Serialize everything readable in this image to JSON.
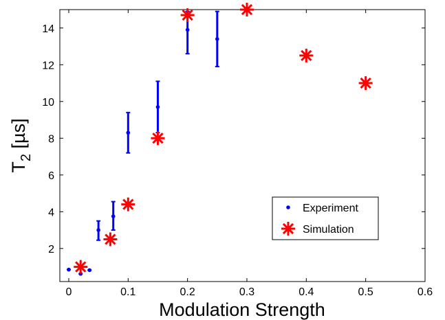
{
  "chart_data": {
    "type": "scatter",
    "title": "",
    "xlabel": "Modulation Strength",
    "ylabel_main": "T",
    "ylabel_sub": "2",
    "ylabel_unit": " [µs]",
    "xlim": [
      -0.015,
      0.6
    ],
    "ylim": [
      0.2,
      15
    ],
    "xticks": [
      0,
      0.1,
      0.2,
      0.3,
      0.4,
      0.5,
      0.6
    ],
    "xtick_labels": [
      "0",
      "0.1",
      "0.2",
      "0.3",
      "0.4",
      "0.5",
      "0.6"
    ],
    "yticks": [
      2,
      4,
      6,
      8,
      10,
      12,
      14
    ],
    "ytick_labels": [
      "2",
      "4",
      "6",
      "8",
      "10",
      "12",
      "14"
    ],
    "grid": false,
    "legend_position": "lower-right",
    "series": [
      {
        "name": "Experiment",
        "marker": "dot",
        "color": "#0000ff",
        "points": [
          {
            "x": 0.0,
            "y": 0.85,
            "err_low": 0.75,
            "err_high": 0.95
          },
          {
            "x": 0.02,
            "y": 0.62,
            "err_low": 0.55,
            "err_high": 0.7
          },
          {
            "x": 0.035,
            "y": 0.82,
            "err_low": 0.72,
            "err_high": 0.92
          },
          {
            "x": 0.05,
            "y": 3.0,
            "err_low": 2.45,
            "err_high": 3.5
          },
          {
            "x": 0.075,
            "y": 3.75,
            "err_low": 3.0,
            "err_high": 4.55
          },
          {
            "x": 0.1,
            "y": 8.3,
            "err_low": 7.2,
            "err_high": 9.4
          },
          {
            "x": 0.15,
            "y": 9.7,
            "err_low": 8.3,
            "err_high": 11.1
          },
          {
            "x": 0.2,
            "y": 13.9,
            "err_low": 12.6,
            "err_high": 14.9
          },
          {
            "x": 0.25,
            "y": 13.4,
            "err_low": 11.9,
            "err_high": 14.9
          }
        ]
      },
      {
        "name": "Simulation",
        "marker": "asterisk",
        "color": "#ff0000",
        "points": [
          {
            "x": 0.02,
            "y": 1.0
          },
          {
            "x": 0.07,
            "y": 2.5
          },
          {
            "x": 0.1,
            "y": 4.4
          },
          {
            "x": 0.15,
            "y": 8.0
          },
          {
            "x": 0.2,
            "y": 14.7
          },
          {
            "x": 0.3,
            "y": 15.0
          },
          {
            "x": 0.4,
            "y": 12.5
          },
          {
            "x": 0.5,
            "y": 11.0
          }
        ]
      }
    ]
  }
}
